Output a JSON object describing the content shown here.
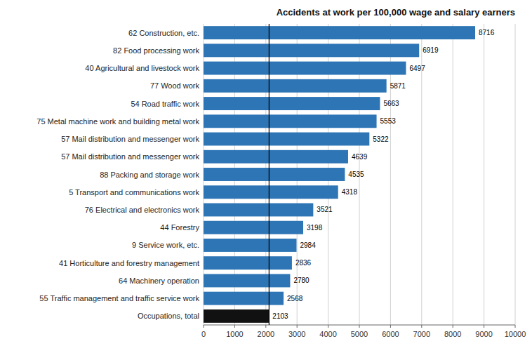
{
  "chart_data": {
    "type": "bar",
    "orientation": "horizontal",
    "title": "Accidents at work per 100,000 wage and salary earners",
    "categories": [
      "Occupations, total",
      "55 Traffic management and traffic service work",
      "64 Machinery operation",
      "41 Horticulture and forestry management",
      "9 Service work, etc.",
      "44 Forestry",
      "76 Electrical and electronics work",
      "5 Transport and communications work",
      "88 Packing and storage work",
      "57 Mail distribution and messenger work",
      "57 Mail distribution and messenger work",
      "75 Metal machine work and building metal work",
      "54 Road traffic work",
      "77 Wood work",
      "40 Agricultural and livestock work",
      "82 Food processing work",
      "62 Construction, etc."
    ],
    "values": [
      2103,
      2568,
      2780,
      2836,
      2984,
      3198,
      3521,
      4318,
      4535,
      4639,
      5322,
      5553,
      5663,
      5871,
      6497,
      6919,
      8716
    ],
    "colors": [
      "#111111",
      "#2e75b6",
      "#2e75b6",
      "#2e75b6",
      "#2e75b6",
      "#2e75b6",
      "#2e75b6",
      "#2e75b6",
      "#2e75b6",
      "#2e75b6",
      "#2e75b6",
      "#2e75b6",
      "#2e75b6",
      "#2e75b6",
      "#2e75b6",
      "#2e75b6",
      "#2e75b6"
    ],
    "reference_line": 2103,
    "xlim": [
      0,
      10000
    ],
    "xticks": [
      0,
      1000,
      2000,
      3000,
      4000,
      5000,
      6000,
      7000,
      8000,
      9000,
      10000
    ],
    "grid": true,
    "data_labels": true
  }
}
